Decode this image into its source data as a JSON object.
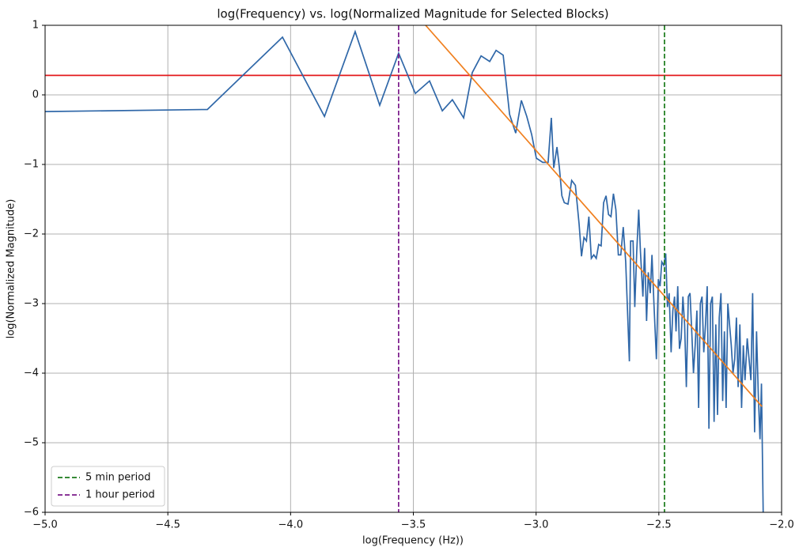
{
  "chart_data": {
    "type": "line",
    "title": "log(Frequency) vs. log(Normalized Magnitude for Selected Blocks)",
    "x_label": "log(Frequency (Hz))",
    "y_label": "log(Normalized Magnitude)",
    "xlim": [
      -5,
      -2
    ],
    "ylim": [
      -6,
      1
    ],
    "xticks": [
      {
        "value": -5,
        "label": "−5.0"
      },
      {
        "value": -4.5,
        "label": "−4.5"
      },
      {
        "value": -4,
        "label": "−4.0"
      },
      {
        "value": -3.5,
        "label": "−3.5"
      },
      {
        "value": -3,
        "label": "−3.0"
      },
      {
        "value": -2.5,
        "label": "−2.5"
      },
      {
        "value": -2,
        "label": "−2.0"
      }
    ],
    "yticks": [
      {
        "value": -6,
        "label": "−6"
      },
      {
        "value": -5,
        "label": "−5"
      },
      {
        "value": -4,
        "label": "−4"
      },
      {
        "value": -3,
        "label": "−3"
      },
      {
        "value": -2,
        "label": "−2"
      },
      {
        "value": -1,
        "label": "−1"
      },
      0,
      1
    ],
    "grid": true,
    "legend_position": "lower left",
    "series": [
      {
        "color": "#2f67a8",
        "x": [
          -5,
          -4.339,
          -4.033,
          -3.862,
          -3.737,
          -3.637,
          -3.56,
          -3.492,
          -3.434,
          -3.382,
          -3.341,
          -3.295,
          -3.26,
          -3.224,
          -3.189,
          -3.163,
          -3.134,
          -3.108,
          -3.083,
          -3.06,
          -3.038,
          -3.018,
          -2.999,
          -2.973,
          -2.951,
          -2.938,
          -2.928,
          -2.915,
          -2.905,
          -2.895,
          -2.885,
          -2.87,
          -2.855,
          -2.84,
          -2.825,
          -2.815,
          -2.805,
          -2.795,
          -2.785,
          -2.775,
          -2.765,
          -2.755,
          -2.745,
          -2.735,
          -2.725,
          -2.715,
          -2.705,
          -2.695,
          -2.685,
          -2.675,
          -2.665,
          -2.655,
          -2.645,
          -2.635,
          -2.62,
          -2.615,
          -2.605,
          -2.598,
          -2.59,
          -2.582,
          -2.575,
          -2.565,
          -2.558,
          -2.55,
          -2.543,
          -2.535,
          -2.528,
          -2.52,
          -2.51,
          -2.502,
          -2.495,
          -2.488,
          -2.48,
          -2.472,
          -2.465,
          -2.458,
          -2.45,
          -2.443,
          -2.436,
          -2.43,
          -2.423,
          -2.416,
          -2.409,
          -2.402,
          -2.395,
          -2.388,
          -2.38,
          -2.373,
          -2.366,
          -2.359,
          -2.352,
          -2.345,
          -2.338,
          -2.331,
          -2.324,
          -2.317,
          -2.31,
          -2.303,
          -2.296,
          -2.289,
          -2.282,
          -2.275,
          -2.268,
          -2.261,
          -2.254,
          -2.247,
          -2.24,
          -2.233,
          -2.226,
          -2.219,
          -2.212,
          -2.205,
          -2.198,
          -2.191,
          -2.184,
          -2.177,
          -2.17,
          -2.163,
          -2.156,
          -2.149,
          -2.14,
          -2.125,
          -2.118,
          -2.11,
          -2.102,
          -2.095,
          -2.088,
          -2.082,
          -2.075
        ],
        "values": [
          -0.24,
          -0.21,
          0.83,
          -0.31,
          0.91,
          -0.15,
          0.6,
          0.02,
          0.2,
          -0.23,
          -0.07,
          -0.33,
          0.32,
          0.56,
          0.48,
          0.64,
          0.57,
          -0.28,
          -0.55,
          -0.08,
          -0.31,
          -0.57,
          -0.91,
          -0.97,
          -0.97,
          -0.33,
          -1.05,
          -0.75,
          -1.05,
          -1.45,
          -1.55,
          -1.57,
          -1.23,
          -1.3,
          -1.85,
          -2.32,
          -2.05,
          -2.1,
          -1.75,
          -2.35,
          -2.3,
          -2.35,
          -2.15,
          -2.17,
          -1.55,
          -1.45,
          -1.72,
          -1.75,
          -1.42,
          -1.65,
          -2.3,
          -2.3,
          -1.9,
          -2.4,
          -3.83,
          -2.1,
          -2.1,
          -3.05,
          -2.25,
          -1.65,
          -2.25,
          -2.9,
          -2.2,
          -3.25,
          -2.55,
          -2.85,
          -2.3,
          -3,
          -3.8,
          -2.65,
          -2.75,
          -2.4,
          -2.45,
          -2.28,
          -3.05,
          -2.85,
          -3.7,
          -3.1,
          -2.9,
          -3.4,
          -2.75,
          -3.65,
          -3.5,
          -2.9,
          -3.3,
          -4.2,
          -2.9,
          -2.85,
          -3.4,
          -4,
          -3.6,
          -3.1,
          -4.5,
          -3,
          -2.9,
          -3.7,
          -3.3,
          -2.75,
          -4.8,
          -3,
          -2.9,
          -4.7,
          -3.3,
          -4.6,
          -3.2,
          -2.85,
          -4.4,
          -3.4,
          -4.5,
          -3,
          -3.3,
          -3.6,
          -4,
          -3.8,
          -3.2,
          -4.2,
          -3.3,
          -4.5,
          -3.6,
          -4.1,
          -3.5,
          -4.1,
          -2.85,
          -4.85,
          -3.4,
          -4.3,
          -4.95,
          -4.15,
          -6
        ]
      },
      {
        "color": "#f07f1e",
        "x": [
          -3.45,
          -2.08
        ],
        "values": [
          1,
          -4.48
        ]
      }
    ],
    "hlines": [
      {
        "value": 0.28,
        "color": "#e31a1c"
      }
    ],
    "vlines": [
      {
        "name": "5 min period",
        "value": -2.477,
        "color": "#1a7a1a"
      },
      {
        "name": "1 hour period",
        "value": -3.56,
        "color": "#7b1a8a"
      }
    ]
  }
}
